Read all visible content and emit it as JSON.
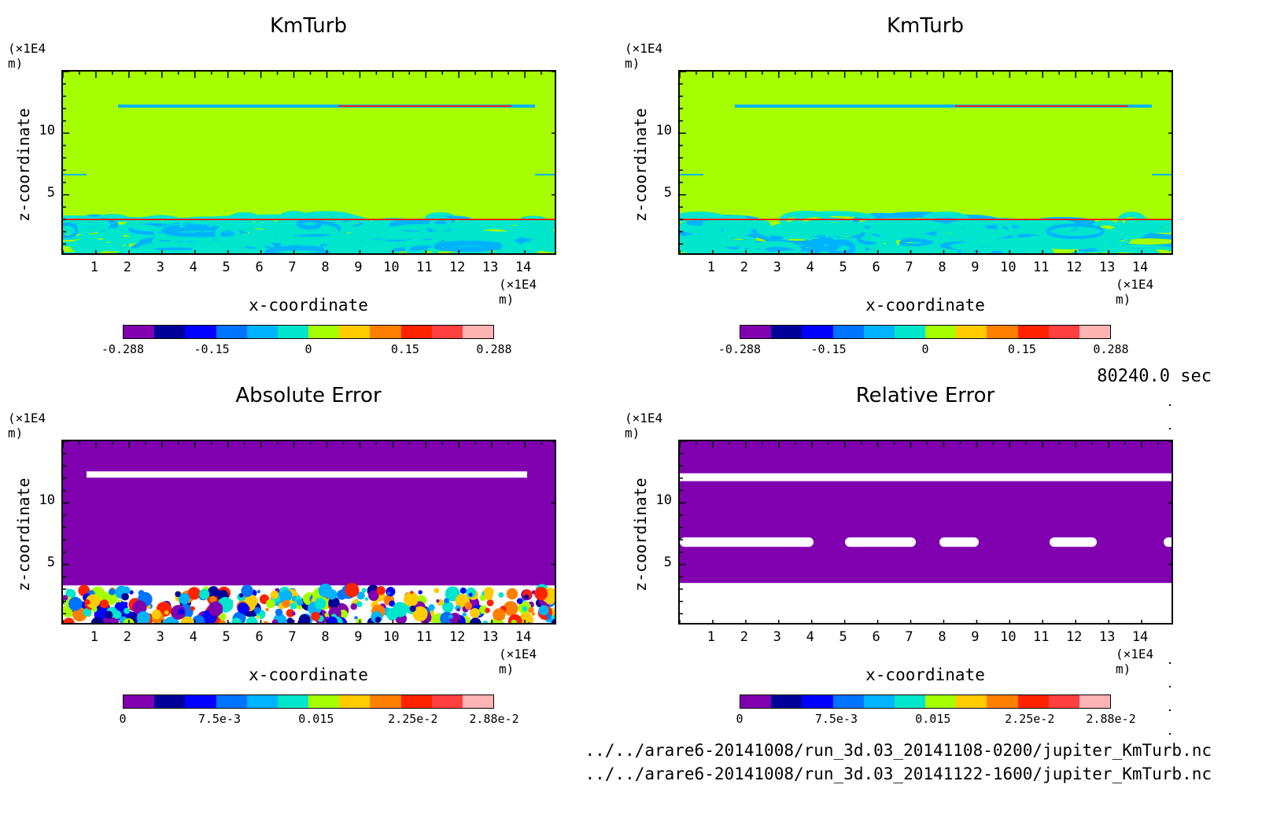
{
  "figure": {
    "timestamp": "80240.0 sec",
    "files": [
      "../../arare6-20141008/run_3d.03_20141108-0200/jupiter_KmTurb.nc",
      "../../arare6-20141008/run_3d.03_20141122-1600/jupiter_KmTurb.nc"
    ]
  },
  "colors": {
    "green_bg": "#a6ff00",
    "purple": "#8000b0",
    "white": "#ffffff",
    "cyan": "#00e6cc",
    "colormap": [
      "#8000b0",
      "#000099",
      "#0000ff",
      "#0073ff",
      "#00b3ff",
      "#00e6cc",
      "#a6ff00",
      "#ffcc00",
      "#ff8000",
      "#ff2200",
      "#ff4040",
      "#ffb3b3"
    ]
  },
  "chart_data": [
    {
      "type": "heatmap",
      "title": "KmTurb",
      "xlabel": "x-coordinate",
      "ylabel": "z-coordinate",
      "x_unit": "(×1E4 m)",
      "z_unit": "(×1E4 m)",
      "xlim": [
        0,
        15
      ],
      "ylim": [
        0,
        15
      ],
      "x_ticks": [
        "1",
        "2",
        "3",
        "4",
        "5",
        "6",
        "7",
        "8",
        "9",
        "10",
        "11",
        "12",
        "13",
        "14"
      ],
      "y_ticks": [
        "5",
        "10"
      ],
      "colorbar": {
        "range": [
          -0.288,
          0.288
        ],
        "tick_labels": [
          "-0.288",
          "-0.15",
          "0",
          "0.15",
          "0.288"
        ]
      },
      "background": "near zero (green)",
      "features": [
        "thin turbulent layer near z ≈ 12",
        "turbulent layer below z ≈ 3"
      ]
    },
    {
      "type": "heatmap",
      "title": "KmTurb",
      "xlabel": "x-coordinate",
      "ylabel": "z-coordinate",
      "x_unit": "(×1E4 m)",
      "z_unit": "(×1E4 m)",
      "xlim": [
        0,
        15
      ],
      "ylim": [
        0,
        15
      ],
      "x_ticks": [
        "1",
        "2",
        "3",
        "4",
        "5",
        "6",
        "7",
        "8",
        "9",
        "10",
        "11",
        "12",
        "13",
        "14"
      ],
      "y_ticks": [
        "5",
        "10"
      ],
      "colorbar": {
        "range": [
          -0.288,
          0.288
        ],
        "tick_labels": [
          "-0.288",
          "-0.15",
          "0",
          "0.15",
          "0.288"
        ]
      },
      "background": "near zero (green)",
      "features": [
        "thin turbulent layer near z ≈ 12",
        "turbulent layer below z ≈ 3"
      ]
    },
    {
      "type": "heatmap",
      "title": "Absolute Error",
      "xlabel": "x-coordinate",
      "ylabel": "z-coordinate",
      "x_unit": "(×1E4 m)",
      "z_unit": "(×1E4 m)",
      "xlim": [
        0,
        15
      ],
      "ylim": [
        0,
        15
      ],
      "x_ticks": [
        "1",
        "2",
        "3",
        "4",
        "5",
        "6",
        "7",
        "8",
        "9",
        "10",
        "11",
        "12",
        "13",
        "14"
      ],
      "y_ticks": [
        "5",
        "10"
      ],
      "colorbar": {
        "range": [
          0,
          0.0288
        ],
        "tick_labels": [
          "0",
          "7.5e-3",
          "0.015",
          "2.25e-2",
          "2.88e-2"
        ]
      },
      "background": "zero (purple)",
      "features": [
        "white band near z ≈ 12",
        "error field below z ≈ 3"
      ]
    },
    {
      "type": "heatmap",
      "title": "Relative Error",
      "xlabel": "x-coordinate",
      "ylabel": "z-coordinate",
      "x_unit": "(×1E4 m)",
      "z_unit": "(×1E4 m)",
      "xlim": [
        0,
        15
      ],
      "ylim": [
        0,
        15
      ],
      "x_ticks": [
        "1",
        "2",
        "3",
        "4",
        "5",
        "6",
        "7",
        "8",
        "9",
        "10",
        "11",
        "12",
        "13",
        "14"
      ],
      "y_ticks": [
        "5",
        "10"
      ],
      "colorbar": {
        "range": [
          0,
          0.0288
        ],
        "tick_labels": [
          "0",
          "7.5e-3",
          "0.015",
          "2.25e-2",
          "2.88e-2"
        ]
      },
      "background": "zero (purple)",
      "features": [
        "white band near z ≈ 12",
        "white patches near z ≈ 7",
        "white region below z ≈ 3.5"
      ]
    }
  ]
}
